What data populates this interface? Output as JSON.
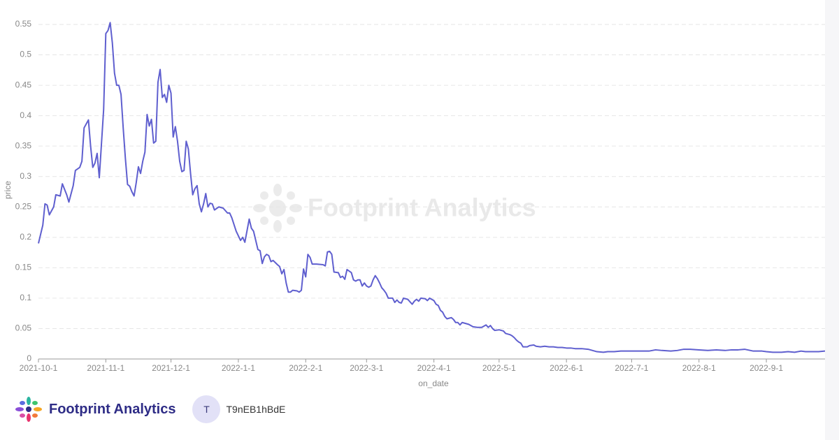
{
  "chart_data": {
    "type": "line",
    "x_label": "on_date",
    "y_label": "price",
    "color": "#5f5fcf",
    "grid": true,
    "xlim": [
      "2021-10-1",
      "2022-9-28"
    ],
    "ylim": [
      0,
      0.55
    ],
    "xticks": [
      "2021-10-1",
      "2021-11-1",
      "2021-12-1",
      "2022-1-1",
      "2022-2-1",
      "2022-3-1",
      "2022-4-1",
      "2022-5-1",
      "2022-6-1",
      "2022-7-1",
      "2022-8-1",
      "2022-9-1"
    ],
    "yticks": [
      0,
      0.05,
      0.1,
      0.15,
      0.2,
      0.25,
      0.3,
      0.35,
      0.4,
      0.45,
      0.5,
      0.55
    ],
    "x": [
      "2021-10-1",
      "2021-10-3",
      "2021-10-4",
      "2021-10-5",
      "2021-10-6",
      "2021-10-8",
      "2021-10-9",
      "2021-10-11",
      "2021-10-12",
      "2021-10-14",
      "2021-10-15",
      "2021-10-17",
      "2021-10-18",
      "2021-10-20",
      "2021-10-21",
      "2021-10-22",
      "2021-10-24",
      "2021-10-25",
      "2021-10-26",
      "2021-10-27",
      "2021-10-28",
      "2021-10-29",
      "2021-10-31",
      "2021-11-1",
      "2021-11-2",
      "2021-11-3",
      "2021-11-4",
      "2021-11-5",
      "2021-11-6",
      "2021-11-7",
      "2021-11-8",
      "2021-11-9",
      "2021-11-10",
      "2021-11-11",
      "2021-11-12",
      "2021-11-13",
      "2021-11-14",
      "2021-11-15",
      "2021-11-16",
      "2021-11-17",
      "2021-11-18",
      "2021-11-19",
      "2021-11-20",
      "2021-11-21",
      "2021-11-22",
      "2021-11-23",
      "2021-11-24",
      "2021-11-25",
      "2021-11-26",
      "2021-11-27",
      "2021-11-28",
      "2021-11-29",
      "2021-11-30",
      "2021-12-1",
      "2021-12-2",
      "2021-12-3",
      "2021-12-4",
      "2021-12-5",
      "2021-12-6",
      "2021-12-7",
      "2021-12-8",
      "2021-12-9",
      "2021-12-10",
      "2021-12-11",
      "2021-12-12",
      "2021-12-13",
      "2021-12-14",
      "2021-12-15",
      "2021-12-16",
      "2021-12-17",
      "2021-12-18",
      "2021-12-19",
      "2021-12-20",
      "2021-12-21",
      "2021-12-23",
      "2021-12-25",
      "2021-12-27",
      "2021-12-28",
      "2021-12-29",
      "2021-12-31",
      "2022-1-2",
      "2022-1-3",
      "2022-1-4",
      "2022-1-6",
      "2022-1-7",
      "2022-1-8",
      "2022-1-10",
      "2022-1-11",
      "2022-1-12",
      "2022-1-13",
      "2022-1-14",
      "2022-1-15",
      "2022-1-16",
      "2022-1-17",
      "2022-1-19",
      "2022-1-20",
      "2022-1-21",
      "2022-1-22",
      "2022-1-23",
      "2022-1-24",
      "2022-1-25",
      "2022-1-26",
      "2022-1-28",
      "2022-1-29",
      "2022-1-30",
      "2022-1-31",
      "2022-2-1",
      "2022-2-2",
      "2022-2-3",
      "2022-2-4",
      "2022-2-6",
      "2022-2-9",
      "2022-2-10",
      "2022-2-11",
      "2022-2-12",
      "2022-2-13",
      "2022-2-14",
      "2022-2-16",
      "2022-2-17",
      "2022-2-18",
      "2022-2-19",
      "2022-2-20",
      "2022-2-22",
      "2022-2-23",
      "2022-2-24",
      "2022-2-25",
      "2022-2-26",
      "2022-2-27",
      "2022-2-28",
      "2022-3-1",
      "2022-3-2",
      "2022-3-3",
      "2022-3-4",
      "2022-3-5",
      "2022-3-6",
      "2022-3-7",
      "2022-3-8",
      "2022-3-9",
      "2022-3-10",
      "2022-3-11",
      "2022-3-12",
      "2022-3-13",
      "2022-3-14",
      "2022-3-15",
      "2022-3-16",
      "2022-3-17",
      "2022-3-18",
      "2022-3-20",
      "2022-3-22",
      "2022-3-23",
      "2022-3-24",
      "2022-3-25",
      "2022-3-26",
      "2022-3-28",
      "2022-3-29",
      "2022-3-30",
      "2022-3-31",
      "2022-4-1",
      "2022-4-2",
      "2022-4-3",
      "2022-4-4",
      "2022-4-5",
      "2022-4-6",
      "2022-4-7",
      "2022-4-8",
      "2022-4-9",
      "2022-4-10",
      "2022-4-11",
      "2022-4-12",
      "2022-4-13",
      "2022-4-14",
      "2022-4-16",
      "2022-4-17",
      "2022-4-19",
      "2022-4-21",
      "2022-4-23",
      "2022-4-25",
      "2022-4-26",
      "2022-4-27",
      "2022-4-28",
      "2022-4-29",
      "2022-5-1",
      "2022-5-3",
      "2022-5-4",
      "2022-5-6",
      "2022-5-7",
      "2022-5-8",
      "2022-5-9",
      "2022-5-10",
      "2022-5-11",
      "2022-5-12",
      "2022-5-14",
      "2022-5-15",
      "2022-5-17",
      "2022-5-18",
      "2022-5-20",
      "2022-5-22",
      "2022-5-24",
      "2022-5-26",
      "2022-5-28",
      "2022-5-30",
      "2022-6-1",
      "2022-6-3",
      "2022-6-5",
      "2022-6-8",
      "2022-6-11",
      "2022-6-13",
      "2022-6-15",
      "2022-6-18",
      "2022-6-20",
      "2022-6-23",
      "2022-6-26",
      "2022-7-1",
      "2022-7-5",
      "2022-7-9",
      "2022-7-12",
      "2022-7-15",
      "2022-7-19",
      "2022-7-22",
      "2022-7-25",
      "2022-7-28",
      "2022-8-1",
      "2022-8-5",
      "2022-8-9",
      "2022-8-13",
      "2022-8-16",
      "2022-8-19",
      "2022-8-22",
      "2022-8-26",
      "2022-8-30",
      "2022-9-1",
      "2022-9-4",
      "2022-9-8",
      "2022-9-11",
      "2022-9-14",
      "2022-9-17",
      "2022-9-19",
      "2022-9-22",
      "2022-9-25",
      "2022-9-28"
    ],
    "values": [
      0.19,
      0.22,
      0.255,
      0.253,
      0.237,
      0.25,
      0.27,
      0.268,
      0.288,
      0.27,
      0.258,
      0.285,
      0.31,
      0.315,
      0.325,
      0.38,
      0.393,
      0.35,
      0.315,
      0.322,
      0.338,
      0.298,
      0.41,
      0.535,
      0.54,
      0.553,
      0.52,
      0.47,
      0.45,
      0.45,
      0.435,
      0.38,
      0.33,
      0.287,
      0.284,
      0.275,
      0.268,
      0.29,
      0.316,
      0.305,
      0.325,
      0.34,
      0.402,
      0.383,
      0.394,
      0.355,
      0.358,
      0.455,
      0.476,
      0.43,
      0.435,
      0.422,
      0.45,
      0.437,
      0.365,
      0.382,
      0.358,
      0.325,
      0.308,
      0.31,
      0.358,
      0.345,
      0.305,
      0.27,
      0.28,
      0.285,
      0.255,
      0.242,
      0.255,
      0.272,
      0.25,
      0.256,
      0.255,
      0.245,
      0.25,
      0.248,
      0.24,
      0.24,
      0.232,
      0.21,
      0.195,
      0.2,
      0.192,
      0.23,
      0.215,
      0.21,
      0.18,
      0.178,
      0.157,
      0.168,
      0.172,
      0.17,
      0.16,
      0.162,
      0.155,
      0.152,
      0.14,
      0.147,
      0.125,
      0.11,
      0.11,
      0.113,
      0.112,
      0.11,
      0.113,
      0.148,
      0.135,
      0.172,
      0.167,
      0.156,
      0.156,
      0.155,
      0.153,
      0.176,
      0.177,
      0.172,
      0.143,
      0.142,
      0.134,
      0.136,
      0.131,
      0.147,
      0.142,
      0.13,
      0.128,
      0.13,
      0.13,
      0.12,
      0.125,
      0.12,
      0.118,
      0.12,
      0.13,
      0.137,
      0.132,
      0.125,
      0.117,
      0.113,
      0.108,
      0.1,
      0.1,
      0.1,
      0.093,
      0.097,
      0.093,
      0.092,
      0.1,
      0.098,
      0.09,
      0.095,
      0.098,
      0.095,
      0.1,
      0.099,
      0.096,
      0.1,
      0.098,
      0.096,
      0.09,
      0.088,
      0.08,
      0.077,
      0.07,
      0.066,
      0.067,
      0.068,
      0.065,
      0.06,
      0.06,
      0.056,
      0.06,
      0.058,
      0.057,
      0.053,
      0.052,
      0.052,
      0.056,
      0.052,
      0.055,
      0.05,
      0.047,
      0.048,
      0.046,
      0.042,
      0.04,
      0.038,
      0.035,
      0.031,
      0.028,
      0.026,
      0.02,
      0.02,
      0.022,
      0.023,
      0.021,
      0.02,
      0.021,
      0.02,
      0.02,
      0.019,
      0.019,
      0.018,
      0.018,
      0.017,
      0.017,
      0.016,
      0.014,
      0.012,
      0.011,
      0.012,
      0.012,
      0.013,
      0.013,
      0.013,
      0.013,
      0.015,
      0.014,
      0.013,
      0.014,
      0.016,
      0.016,
      0.015,
      0.014,
      0.015,
      0.014,
      0.015,
      0.015,
      0.016,
      0.013,
      0.013,
      0.012,
      0.011,
      0.011,
      0.012,
      0.011,
      0.013,
      0.012,
      0.012,
      0.012,
      0.013
    ]
  },
  "watermark": "Footprint Analytics",
  "footer": {
    "brand": "Footprint Analytics",
    "avatar": "T",
    "user": "T9nEB1hBdE"
  }
}
